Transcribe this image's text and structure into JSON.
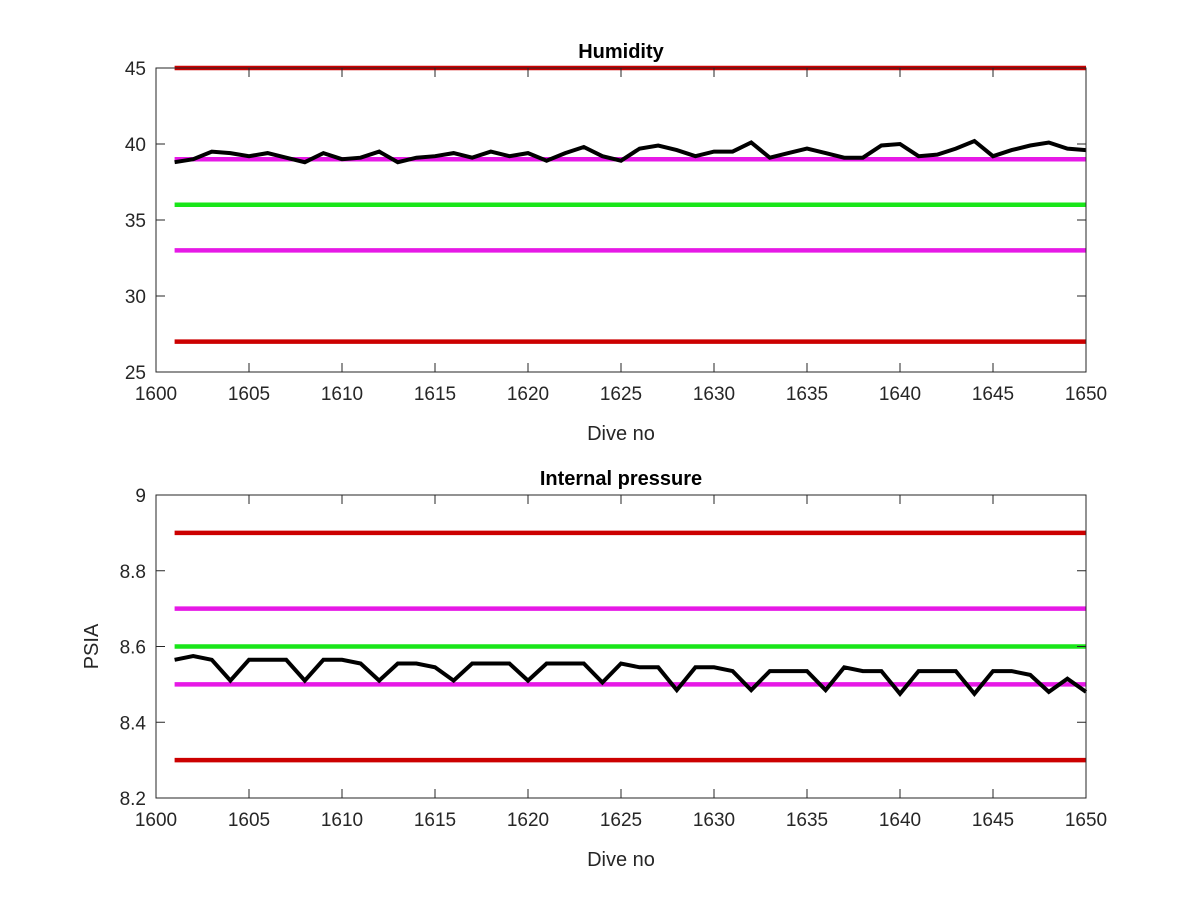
{
  "chart_data": [
    {
      "type": "line",
      "title": "Humidity",
      "xlabel": "Dive no",
      "ylabel": "",
      "xlim": [
        1600,
        1650
      ],
      "ylim": [
        25,
        45
      ],
      "xticks": [
        1600,
        1605,
        1610,
        1615,
        1620,
        1625,
        1630,
        1635,
        1640,
        1645,
        1650
      ],
      "yticks": [
        25,
        30,
        35,
        40,
        45
      ],
      "grid": false,
      "reference_lines": [
        {
          "y": 45,
          "color": "#cc0000"
        },
        {
          "y": 39,
          "color": "#e619e6"
        },
        {
          "y": 36,
          "color": "#19e619"
        },
        {
          "y": 33,
          "color": "#e619e6"
        },
        {
          "y": 27,
          "color": "#cc0000"
        }
      ],
      "series": [
        {
          "color": "#000000",
          "x": [
            1601,
            1602,
            1603,
            1604,
            1605,
            1606,
            1607,
            1608,
            1609,
            1610,
            1611,
            1612,
            1613,
            1614,
            1615,
            1616,
            1617,
            1618,
            1619,
            1620,
            1621,
            1622,
            1623,
            1624,
            1625,
            1626,
            1627,
            1628,
            1629,
            1630,
            1631,
            1632,
            1633,
            1634,
            1635,
            1636,
            1637,
            1638,
            1639,
            1640,
            1641,
            1642,
            1643,
            1644,
            1645,
            1646,
            1647,
            1648,
            1649,
            1650
          ],
          "y": [
            38.8,
            39.0,
            39.5,
            39.4,
            39.2,
            39.4,
            39.1,
            38.8,
            39.4,
            39.0,
            39.1,
            39.5,
            38.8,
            39.1,
            39.2,
            39.4,
            39.1,
            39.5,
            39.2,
            39.4,
            38.9,
            39.4,
            39.8,
            39.2,
            38.9,
            39.7,
            39.9,
            39.6,
            39.2,
            39.5,
            39.5,
            40.1,
            39.1,
            39.4,
            39.7,
            39.4,
            39.1,
            39.1,
            39.9,
            40.0,
            39.2,
            39.3,
            39.7,
            40.2,
            39.2,
            39.6,
            39.9,
            40.1,
            39.7,
            39.6
          ]
        }
      ]
    },
    {
      "type": "line",
      "title": "Internal pressure",
      "xlabel": "Dive no",
      "ylabel": "PSIA",
      "xlim": [
        1600,
        1650
      ],
      "ylim": [
        8.2,
        9.0
      ],
      "xticks": [
        1600,
        1605,
        1610,
        1615,
        1620,
        1625,
        1630,
        1635,
        1640,
        1645,
        1650
      ],
      "yticks": [
        8.2,
        8.4,
        8.6,
        8.8,
        9
      ],
      "ytick_labels": [
        "8.2",
        "8.4",
        "8.6",
        "8.8",
        "9"
      ],
      "grid": false,
      "reference_lines": [
        {
          "y": 8.9,
          "color": "#cc0000"
        },
        {
          "y": 8.7,
          "color": "#e619e6"
        },
        {
          "y": 8.6,
          "color": "#19e619"
        },
        {
          "y": 8.5,
          "color": "#e619e6"
        },
        {
          "y": 8.3,
          "color": "#cc0000"
        }
      ],
      "series": [
        {
          "color": "#000000",
          "x": [
            1601,
            1602,
            1603,
            1604,
            1605,
            1606,
            1607,
            1608,
            1609,
            1610,
            1611,
            1612,
            1613,
            1614,
            1615,
            1616,
            1617,
            1618,
            1619,
            1620,
            1621,
            1622,
            1623,
            1624,
            1625,
            1626,
            1627,
            1628,
            1629,
            1630,
            1631,
            1632,
            1633,
            1634,
            1635,
            1636,
            1637,
            1638,
            1639,
            1640,
            1641,
            1642,
            1643,
            1644,
            1645,
            1646,
            1647,
            1648,
            1649,
            1650
          ],
          "y": [
            8.565,
            8.575,
            8.565,
            8.51,
            8.565,
            8.565,
            8.565,
            8.51,
            8.565,
            8.565,
            8.555,
            8.51,
            8.555,
            8.555,
            8.545,
            8.51,
            8.555,
            8.555,
            8.555,
            8.51,
            8.555,
            8.555,
            8.555,
            8.505,
            8.555,
            8.545,
            8.545,
            8.485,
            8.545,
            8.545,
            8.535,
            8.485,
            8.535,
            8.535,
            8.535,
            8.485,
            8.545,
            8.535,
            8.535,
            8.475,
            8.535,
            8.535,
            8.535,
            8.475,
            8.535,
            8.535,
            8.525,
            8.48,
            8.515,
            8.48
          ]
        }
      ]
    }
  ]
}
